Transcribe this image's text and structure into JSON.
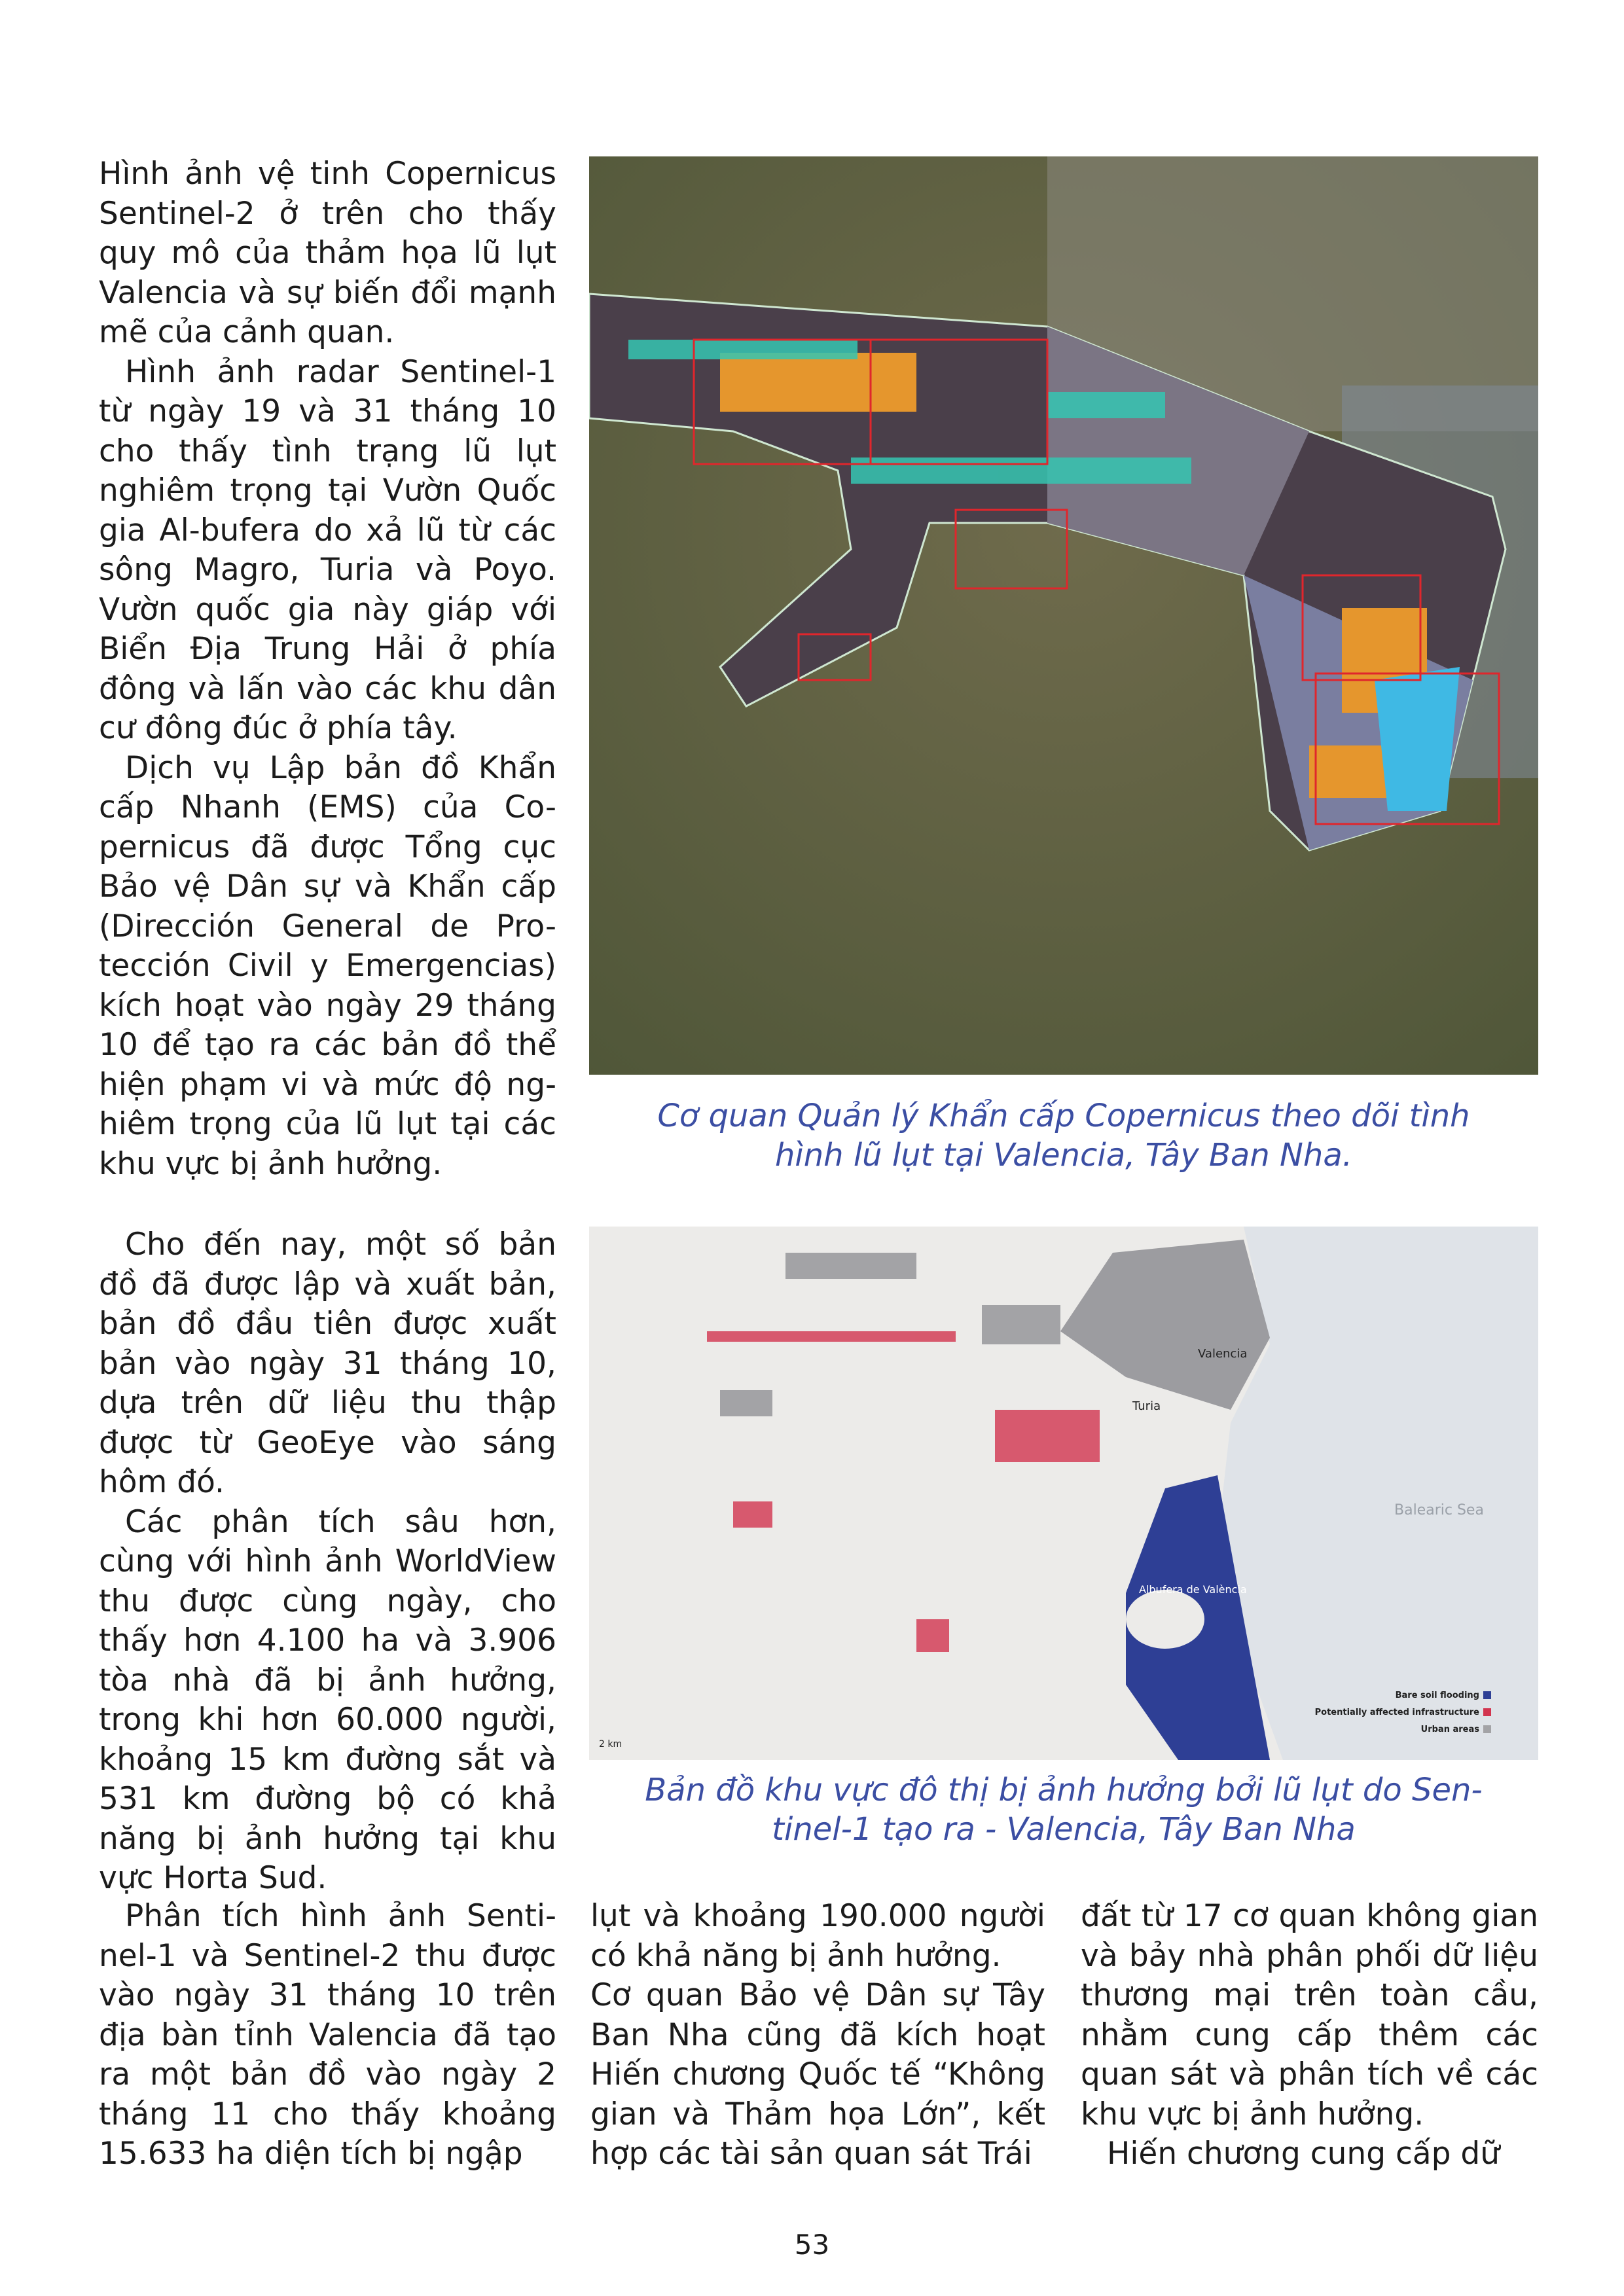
{
  "left_column": {
    "block1": [
      "Hình ảnh vệ tinh Copernicus Sentinel-2 ở trên cho thấy quy mô của thảm họa lũ lụt Valencia và sự biến đổi mạnh mẽ của cảnh quan.",
      "Hình ảnh radar Sentinel-1 từ ngày 19 và 31 tháng 10 cho thấy tình trạng lũ lụt nghiêm trọng tại Vườn Quốc gia Al-bufera do xả lũ từ các sông Magro, Turia và Poyo. Vườn quốc gia này giáp với Biển Địa Trung Hải ở phía đông và lấn vào các khu dân cư đông đúc ở phía tây.",
      "Dịch vụ Lập bản đồ Khẩn cấp Nhanh (EMS) của Co-pernicus đã được Tổng cục Bảo vệ Dân sự và Khẩn cấp (Dirección General de Pro-tección Civil y Emergencias) kích hoạt vào ngày 29 tháng 10 để tạo ra các bản đồ thể hiện phạm vi và mức độ ng-hiêm trọng của lũ lụt tại các khu vực bị ảnh hưởng."
    ],
    "block2": [
      "Cho đến nay, một số bản đồ đã được lập và xuất bản, bản đồ đầu tiên được xuất bản vào ngày 31 tháng 10, dựa trên dữ liệu thu thập được từ GeoEye vào sáng hôm đó.",
      "Các phân tích sâu hơn, cùng với hình ảnh WorldView thu được cùng ngày, cho thấy hơn 4.100 ha và 3.906 tòa nhà đã bị ảnh hưởng, trong khi hơn 60.000 người, khoảng 15 km đường sắt và 531 km đường bộ có khả năng bị ảnh hưởng tại khu vực Horta Sud."
    ]
  },
  "figure1": {
    "caption": "Cơ quan Quản lý Khẩn cấp Copernicus theo dõi tình hình lũ lụt tại Valencia, Tây Ban Nha."
  },
  "figure2": {
    "caption": "Bản đồ khu vực đô thị bị ảnh hưởng bởi lũ lụt do Sen-tinel-1 tạo ra - Valencia, Tây Ban Nha",
    "labels": {
      "city": "Valencia",
      "river": "Turia",
      "sea": "Balearic Sea",
      "lake": "Albufera de València",
      "scale": "2 km"
    },
    "legend": [
      {
        "label": "Bare soil flooding",
        "color": "#2e3f95"
      },
      {
        "label": "Potentially affected infrastructure",
        "color": "#d2354f"
      },
      {
        "label": "Urban areas",
        "color": "#a3a3a6"
      }
    ]
  },
  "bottom": {
    "col1": "Phân tích hình ảnh Senti-nel-1 và Sentinel-2 thu được vào ngày 31 tháng 10 trên địa bàn tỉnh Valencia đã tạo ra một bản đồ vào ngày 2 tháng 11 cho thấy khoảng 15.633 ha diện tích bị ngập",
    "col2": [
      "lụt và khoảng 190.000 người có khả năng bị ảnh hưởng.",
      "Cơ quan Bảo vệ Dân sự Tây Ban Nha cũng đã kích hoạt Hiến chương Quốc tế “Không gian và Thảm họa Lớn”, kết hợp các tài sản quan sát Trái"
    ],
    "col3": [
      "đất từ 17 cơ quan không gian và bảy nhà phân phối dữ liệu thương mại trên toàn cầu, nhằm cung cấp thêm các quan sát và phân tích về các khu vực bị ảnh hưởng.",
      "Hiến chương cung cấp dữ"
    ]
  },
  "page_number": "53"
}
